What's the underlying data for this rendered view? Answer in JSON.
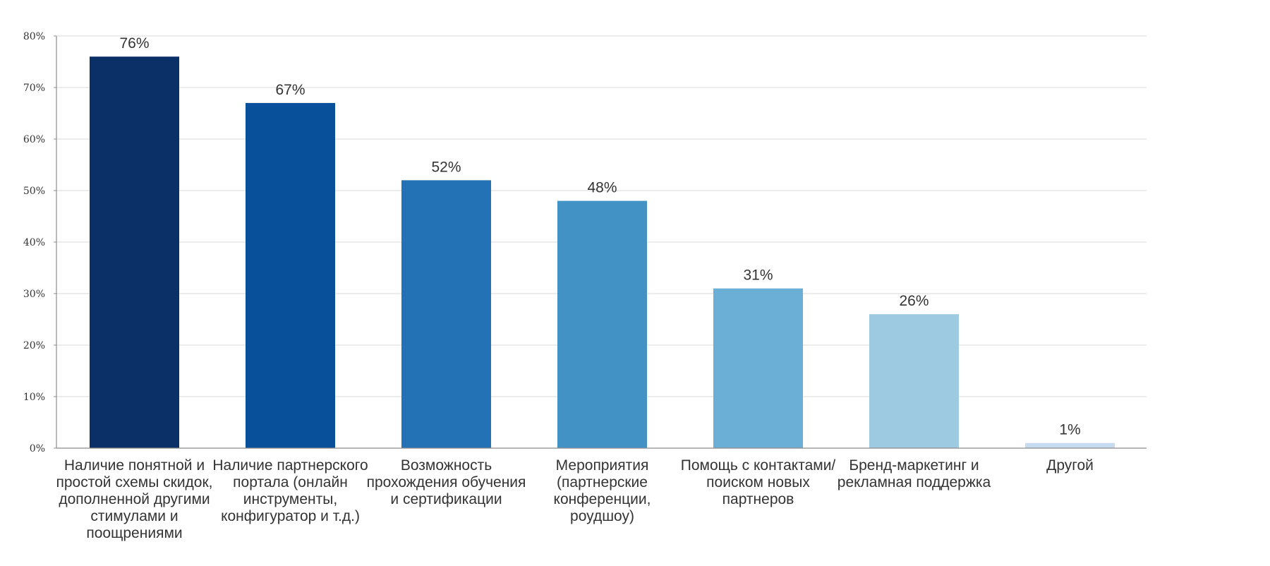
{
  "chart_data": {
    "type": "bar",
    "title": "",
    "xlabel": "",
    "ylabel": "",
    "ylim": [
      0,
      80
    ],
    "yticks": [
      0,
      10,
      20,
      30,
      40,
      50,
      60,
      70,
      80
    ],
    "ytick_labels": [
      "0%",
      "10%",
      "20%",
      "30%",
      "40%",
      "50%",
      "60%",
      "70%",
      "80%"
    ],
    "grid": true,
    "legend": "none",
    "categories": [
      "Наличие понятной и простой схемы скидок, дополненной другими стимулами и поощрениями",
      "Наличие партнерского портала (онлайн инструменты, конфигуратор и т.д.)",
      "Возможность прохождения обучения и сертификации",
      "Мероприятия (партнерские конференции, роудшоу)",
      "Помощь с контактами/поиском новых партнеров",
      "Бренд-маркетинг и рекламная поддержка",
      "Другой"
    ],
    "values": [
      76,
      67,
      52,
      48,
      31,
      26,
      1
    ],
    "data_labels": [
      "76%",
      "67%",
      "52%",
      "48%",
      "31%",
      "26%",
      "1%"
    ],
    "colors": [
      "#0b3068",
      "#08509a",
      "#2372b5",
      "#4292c6",
      "#6baed6",
      "#9ecae1",
      "#c6dbef"
    ],
    "gridline_color": "#d9d9d9",
    "axis_color": "#8c8c8c"
  }
}
